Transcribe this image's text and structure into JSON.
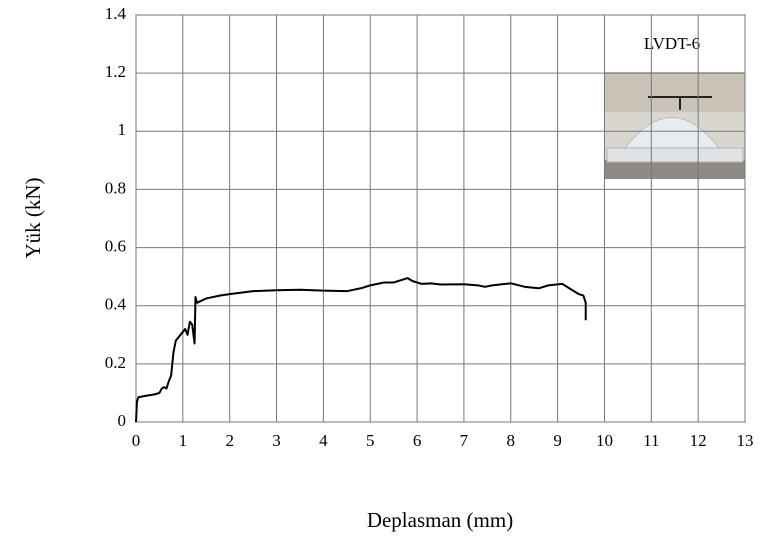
{
  "chart_data": {
    "type": "line",
    "x_label": "Deplasman (mm)",
    "y_label": "Yük (kN)",
    "annotation": "LVDT-6",
    "color": "#000000",
    "x": [
      0,
      0.02,
      0.05,
      0.2,
      0.4,
      0.5,
      0.55,
      0.6,
      0.65,
      0.7,
      0.75,
      0.8,
      0.85,
      0.95,
      1.0,
      1.05,
      1.1,
      1.15,
      1.2,
      1.25,
      1.27,
      1.3,
      1.5,
      1.8,
      2,
      2.5,
      3,
      3.5,
      4,
      4.5,
      4.8,
      5,
      5.3,
      5.5,
      5.7,
      5.8,
      5.9,
      6.1,
      6.3,
      6.5,
      7,
      7.3,
      7.45,
      7.6,
      8,
      8.3,
      8.6,
      8.8,
      9.1,
      9.3,
      9.45,
      9.55,
      9.6,
      9.6
    ],
    "values": [
      0,
      0.07,
      0.085,
      0.09,
      0.095,
      0.1,
      0.115,
      0.12,
      0.115,
      0.14,
      0.16,
      0.24,
      0.28,
      0.3,
      0.31,
      0.32,
      0.3,
      0.345,
      0.335,
      0.27,
      0.43,
      0.41,
      0.425,
      0.435,
      0.44,
      0.45,
      0.453,
      0.455,
      0.452,
      0.45,
      0.46,
      0.47,
      0.48,
      0.48,
      0.49,
      0.495,
      0.485,
      0.475,
      0.477,
      0.473,
      0.474,
      0.47,
      0.465,
      0.47,
      0.477,
      0.465,
      0.46,
      0.47,
      0.475,
      0.455,
      0.44,
      0.435,
      0.41,
      0.35
    ],
    "xlim": [
      0,
      13
    ],
    "xticks": [
      0,
      1,
      2,
      3,
      4,
      5,
      6,
      7,
      8,
      9,
      10,
      11,
      12,
      13
    ],
    "ylim": [
      0,
      1.4
    ],
    "yticks": [
      0,
      0.2,
      0.4,
      0.6,
      0.8,
      1,
      1.2,
      1.4
    ],
    "grid": true
  }
}
